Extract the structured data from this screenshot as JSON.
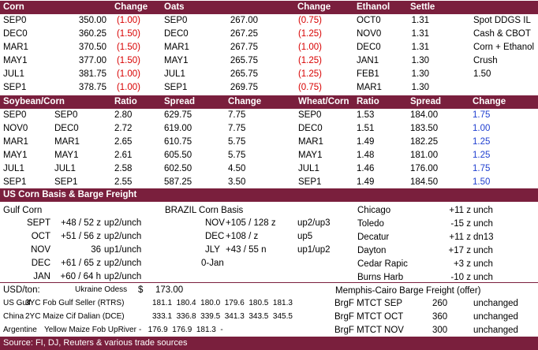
{
  "grains_header": [
    "Corn",
    "Change",
    "Oats",
    "Change",
    "Ethanol",
    "Settle"
  ],
  "grains_rows": [
    {
      "corn_m": "SEP0",
      "corn_v": "350.00",
      "corn_ch": "(1.00)",
      "oats_m": "SEP0",
      "oats_v": "267.00",
      "oats_ch": "(0.75)",
      "eth_m": "OCT0",
      "eth_v": "1.31",
      "note": "Spot DDGS IL"
    },
    {
      "corn_m": "DEC0",
      "corn_v": "360.25",
      "corn_ch": "(1.50)",
      "oats_m": "DEC0",
      "oats_v": "267.25",
      "oats_ch": "(1.25)",
      "eth_m": "NOV0",
      "eth_v": "1.31",
      "note": "Cash & CBOT"
    },
    {
      "corn_m": "MAR1",
      "corn_v": "370.50",
      "corn_ch": "(1.50)",
      "oats_m": "MAR1",
      "oats_v": "267.75",
      "oats_ch": "(1.00)",
      "eth_m": "DEC0",
      "eth_v": "1.31",
      "note": "Corn + Ethanol"
    },
    {
      "corn_m": "MAY1",
      "corn_v": "377.00",
      "corn_ch": "(1.50)",
      "oats_m": "MAY1",
      "oats_v": "265.75",
      "oats_ch": "(1.25)",
      "eth_m": "JAN1",
      "eth_v": "1.30",
      "note": "Crush"
    },
    {
      "corn_m": "JUL1",
      "corn_v": "381.75",
      "corn_ch": "(1.00)",
      "oats_m": "JUL1",
      "oats_v": "265.75",
      "oats_ch": "(1.25)",
      "eth_m": "FEB1",
      "eth_v": "1.30",
      "note": "1.50"
    },
    {
      "corn_m": "SEP1",
      "corn_v": "378.75",
      "corn_ch": "(1.00)",
      "oats_m": "SEP1",
      "oats_v": "269.75",
      "oats_ch": "(0.75)",
      "eth_m": "MAR1",
      "eth_v": "1.30",
      "note": ""
    }
  ],
  "ratio_header": [
    "Soybean/Corn",
    "Ratio",
    "Spread",
    "Change",
    "Wheat/Corn",
    "Ratio",
    "Spread",
    "Change"
  ],
  "ratio_rows": [
    {
      "sb": "SEP0",
      "cn": "SEP0",
      "ratio": "2.80",
      "spread": "629.75",
      "change": "7.75",
      "wc": "SEP0",
      "wratio": "1.53",
      "wspread": "184.00",
      "wchange": "1.75"
    },
    {
      "sb": "NOV0",
      "cn": "DEC0",
      "ratio": "2.72",
      "spread": "619.00",
      "change": "7.75",
      "wc": "DEC0",
      "wratio": "1.51",
      "wspread": "183.50",
      "wchange": "1.00"
    },
    {
      "sb": "MAR1",
      "cn": "MAR1",
      "ratio": "2.65",
      "spread": "610.75",
      "change": "5.75",
      "wc": "MAR1",
      "wratio": "1.49",
      "wspread": "182.25",
      "wchange": "1.25"
    },
    {
      "sb": "MAY1",
      "cn": "MAY1",
      "ratio": "2.61",
      "spread": "605.50",
      "change": "5.75",
      "wc": "MAY1",
      "wratio": "1.48",
      "wspread": "181.00",
      "wchange": "1.25"
    },
    {
      "sb": "JUL1",
      "cn": "JUL1",
      "ratio": "2.58",
      "spread": "602.50",
      "change": "4.50",
      "wc": "JUL1",
      "wratio": "1.46",
      "wspread": "176.00",
      "wchange": "1.75"
    },
    {
      "sb": "SEP1",
      "cn": "SEP1",
      "ratio": "2.55",
      "spread": "587.25",
      "change": "3.50",
      "wc": "SEP1",
      "wratio": "1.49",
      "wspread": "184.50",
      "wchange": "1.50"
    }
  ],
  "basis_title": "US Corn Basis & Barge Freight",
  "gulf": {
    "title": "Gulf Corn",
    "rows": [
      {
        "m": "SEPT",
        "v": "+48 / 52 z",
        "s": "up2/unch"
      },
      {
        "m": "OCT",
        "v": "+51 / 56 z",
        "s": "up2/unch"
      },
      {
        "m": "NOV",
        "v": "36",
        "s": "up1/unch"
      },
      {
        "m": "DEC",
        "v": "+61 / 65 z",
        "s": "up2/unch"
      },
      {
        "m": "JAN",
        "v": "+60 / 64 h",
        "s": "up2/unch"
      }
    ]
  },
  "brazil": {
    "title": "BRAZIL Corn Basis",
    "rows": [
      {
        "m": "NOV",
        "v": "+105 / 128 z",
        "s": "up2/up3"
      },
      {
        "m": "DEC",
        "v": "+108 / z",
        "s": "up5"
      },
      {
        "m": "JLY",
        "v": "+43 / 55 n",
        "s": "up1/up2"
      },
      {
        "m": "0-Jan",
        "v": "",
        "s": ""
      }
    ]
  },
  "us_basis": [
    {
      "loc": "Chicago",
      "v": "+11 z",
      "s": "unch"
    },
    {
      "loc": "Toledo",
      "v": "-15 z",
      "s": "unch"
    },
    {
      "loc": "Decatur",
      "v": "+11 z",
      "s": "dn13"
    },
    {
      "loc": "Dayton",
      "v": "+17 z",
      "s": "unch"
    },
    {
      "loc": "Cedar Rapic",
      "v": "+3 z",
      "s": "unch"
    },
    {
      "loc": "Burns Harb",
      "v": "-10 z",
      "s": "unch"
    }
  ],
  "fob": {
    "usd_label": "USD/ton:",
    "ukr_label": "Ukraine Odess",
    "ukr_cur": "$",
    "ukr_val": "173.00",
    "rows": [
      {
        "country": "US Gulf",
        "desc": "3YC Fob Gulf Seller (RTRS)",
        "vals": "181.1  180.4  180.0  179.6  180.5  181.3"
      },
      {
        "country": "China",
        "desc": "2YC Maize Cif Dalian (DCE)",
        "vals": "333.1  336.8  339.5  341.3  343.5  345.5"
      },
      {
        "country": "Argentine",
        "desc": "Yellow Maize Fob UpRiver",
        "vals": "-   176.9  176.9  181.3  -"
      }
    ]
  },
  "barge": {
    "title": "Memphis-Cairo Barge Freight (offer)",
    "rows": [
      {
        "label": "BrgF MTCT SEP",
        "v": "260",
        "s": "unchanged"
      },
      {
        "label": "BrgF MTCT OCT",
        "v": "360",
        "s": "unchanged"
      },
      {
        "label": "BrgF MTCT NOV",
        "v": "300",
        "s": "unchanged"
      }
    ]
  },
  "source": "Source: FI, DJ, Reuters & various trade sources"
}
